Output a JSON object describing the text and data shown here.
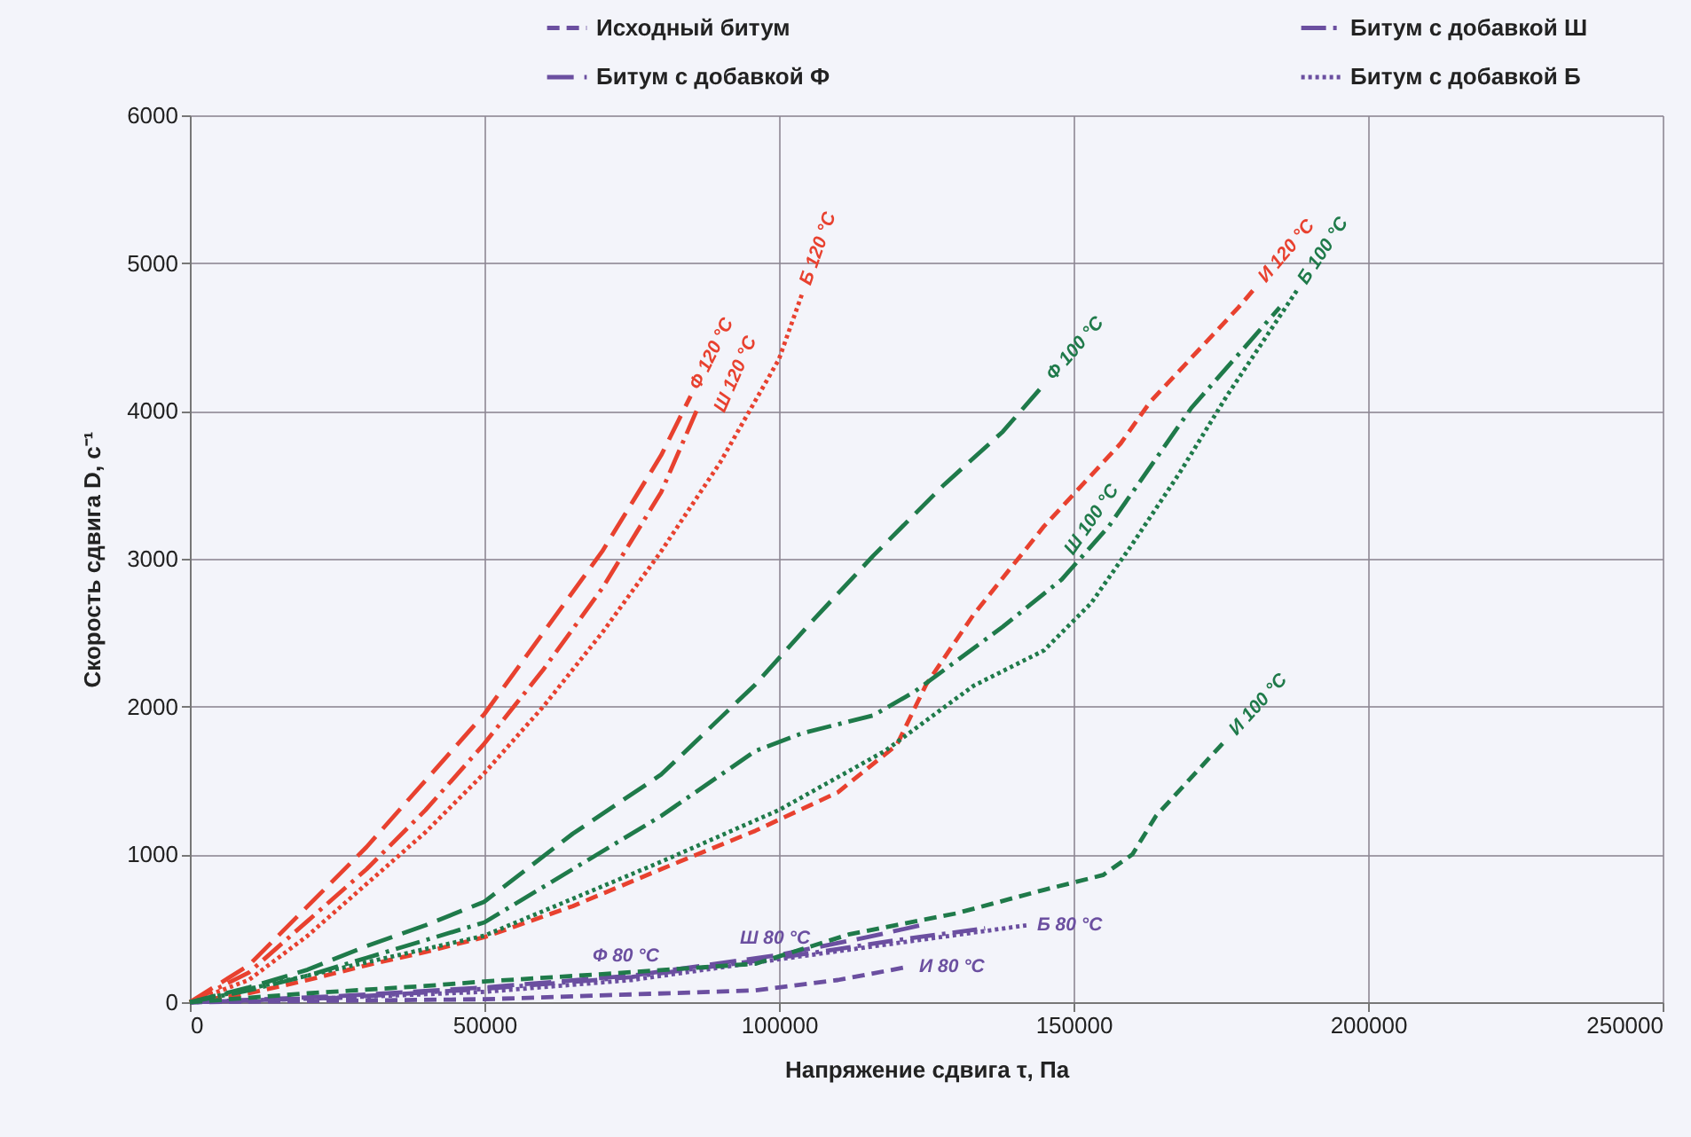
{
  "chart_data": {
    "type": "line",
    "xlabel": "Напряжение сдвига τ, Па",
    "ylabel": "Скорость сдвига D, с⁻¹",
    "xlim": [
      0,
      250000
    ],
    "xticks": [
      0,
      50000,
      100000,
      150000,
      200000,
      250000
    ],
    "ylim": [
      0,
      6000
    ],
    "yticks": [
      0,
      1000,
      2000,
      3000,
      4000,
      5000,
      6000
    ],
    "grid": true,
    "legend": "top",
    "series": [
      {
        "name": "Исходный битум",
        "color": "#6b4fa0",
        "line_style": "dashed",
        "x": [
          0,
          50000,
          96000,
          110000,
          122000
        ],
        "values": [
          0,
          20,
          80,
          150,
          240
        ]
      },
      {
        "name": "Битум с добавкой Ф",
        "color": "#6b4fa0",
        "line_style": "longdash",
        "x": [
          0,
          25000,
          50000,
          75000,
          100000,
          115000,
          124000
        ],
        "values": [
          0,
          40,
          100,
          180,
          320,
          440,
          520
        ]
      },
      {
        "name": "Битум с добавкой Ш",
        "color": "#6b4fa0",
        "line_style": "dashdot",
        "x": [
          0,
          25000,
          50000,
          75000,
          100000,
          120000,
          135000
        ],
        "values": [
          0,
          30,
          90,
          170,
          300,
          420,
          500
        ]
      },
      {
        "name": "Битум с добавкой Б",
        "color": "#6b4fa0",
        "line_style": "dotted",
        "x": [
          0,
          25000,
          50000,
          75000,
          100000,
          142000
        ],
        "values": [
          0,
          30,
          70,
          150,
          290,
          520
        ]
      },
      {
        "color": "#e8412f",
        "line_style": "longdash",
        "x": [
          0,
          10000,
          20000,
          30000,
          40000,
          50000,
          60000,
          70000,
          80000,
          85000
        ],
        "values": [
          0,
          250,
          650,
          1050,
          1500,
          1950,
          2500,
          3050,
          3700,
          4100
        ]
      },
      {
        "color": "#e8412f",
        "line_style": "dashdot",
        "x": [
          0,
          10000,
          20000,
          30000,
          40000,
          50000,
          60000,
          70000,
          80000,
          86000
        ],
        "values": [
          0,
          200,
          550,
          900,
          1300,
          1750,
          2250,
          2800,
          3450,
          4000
        ]
      },
      {
        "color": "#e8412f",
        "line_style": "dotted",
        "x": [
          0,
          10000,
          20000,
          30000,
          40000,
          50000,
          60000,
          70000,
          80000,
          90000,
          100000,
          104000
        ],
        "values": [
          0,
          150,
          450,
          800,
          1150,
          1550,
          2000,
          2500,
          3050,
          3650,
          4350,
          4800
        ]
      },
      {
        "color": "#e8412f",
        "line_style": "dashed",
        "x": [
          0,
          10000,
          20000,
          30000,
          40000,
          50000,
          65000,
          80000,
          96000,
          110000,
          120000,
          125000,
          133000,
          145000,
          158000,
          163000,
          178000,
          181000
        ],
        "values": [
          0,
          60,
          150,
          250,
          340,
          440,
          650,
          900,
          1160,
          1420,
          1740,
          2150,
          2620,
          3220,
          3780,
          4060,
          4700,
          4840
        ]
      },
      {
        "color": "#1f7a4a",
        "line_style": "longdash",
        "x": [
          0,
          10000,
          20000,
          30000,
          40000,
          50000,
          65000,
          80000,
          96000,
          105000,
          116000,
          128000,
          138000,
          145000
        ],
        "values": [
          0,
          100,
          220,
          380,
          520,
          680,
          1140,
          1540,
          2150,
          2550,
          3020,
          3500,
          3860,
          4180
        ]
      },
      {
        "color": "#1f7a4a",
        "line_style": "dashdot",
        "x": [
          0,
          10000,
          20000,
          30000,
          40000,
          50000,
          65000,
          80000,
          96000,
          104000,
          116000,
          123000,
          138000,
          148000,
          156000,
          170000,
          185000
        ],
        "values": [
          0,
          80,
          180,
          300,
          420,
          540,
          900,
          1260,
          1700,
          1820,
          1940,
          2100,
          2540,
          2860,
          3220,
          4020,
          4700
        ]
      },
      {
        "color": "#1f7a4a",
        "line_style": "dotted",
        "x": [
          0,
          50000,
          80000,
          100000,
          118000,
          133000,
          145000,
          153000,
          160000,
          168000,
          176000,
          188000
        ],
        "values": [
          0,
          450,
          950,
          1300,
          1700,
          2140,
          2380,
          2700,
          3100,
          3580,
          4100,
          4820
        ]
      },
      {
        "color": "#1f7a4a",
        "line_style": "dashed",
        "x": [
          0,
          20000,
          40000,
          50000,
          70000,
          96000,
          112000,
          130000,
          145000,
          155000,
          160000,
          164000,
          176000
        ],
        "values": [
          0,
          60,
          110,
          140,
          190,
          260,
          460,
          600,
          760,
          860,
          1000,
          1260,
          1780
        ]
      }
    ],
    "annotations": [
      {
        "text": "Ф 120 °C",
        "x": 85000,
        "y": 4100
      },
      {
        "text": "Ш 120 °C",
        "x": 86000,
        "y": 4000
      },
      {
        "text": "Б 120 °C",
        "x": 104000,
        "y": 4800
      },
      {
        "text": "Ф 100 °C",
        "x": 145000,
        "y": 4180
      },
      {
        "text": "И 120 °C",
        "x": 181000,
        "y": 4840
      },
      {
        "text": "Ш 100 °C",
        "x": 156000,
        "y": 3220
      },
      {
        "text": "Б 100 °C",
        "x": 188000,
        "y": 4820
      },
      {
        "text": "И 100 °C",
        "x": 176000,
        "y": 1780
      },
      {
        "text": "Ф 80 °C",
        "x": 75000,
        "y": 180
      },
      {
        "text": "Ш 80 °C",
        "x": 100000,
        "y": 300
      },
      {
        "text": "Б 80 °C",
        "x": 142000,
        "y": 520
      },
      {
        "text": "И 80 °C",
        "x": 122000,
        "y": 240
      }
    ]
  }
}
